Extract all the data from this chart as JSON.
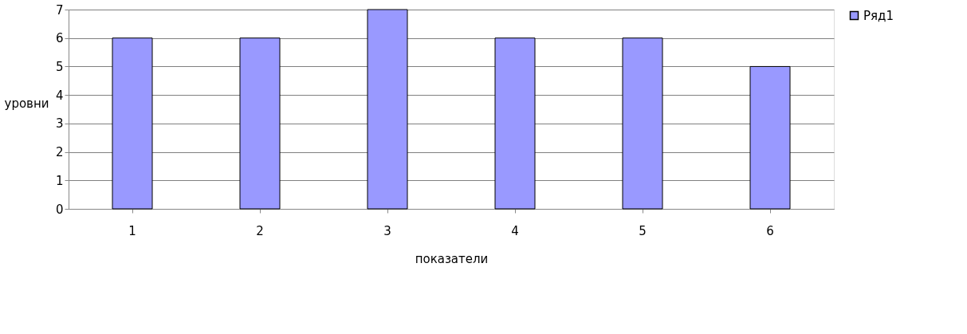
{
  "chart_data": {
    "type": "bar",
    "xlabel": "показатели",
    "ylabel": "уровни",
    "categories": [
      "1",
      "2",
      "3",
      "4",
      "5",
      "6"
    ],
    "series": [
      {
        "name": "Ряд1",
        "color": "#9999ff",
        "values": [
          6,
          6,
          7,
          6,
          6,
          5
        ]
      }
    ],
    "ylim": [
      0,
      7
    ],
    "yticks": [
      0,
      1,
      2,
      3,
      4,
      5,
      6,
      7
    ],
    "grid": "y",
    "legend": "right"
  }
}
